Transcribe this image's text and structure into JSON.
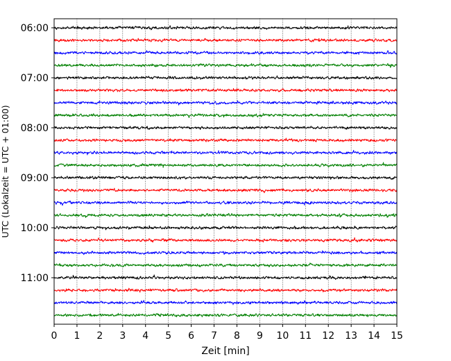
{
  "chart_data": {
    "type": "line",
    "title": "",
    "xlabel": "Zeit  [min]",
    "ylabel": "UTC (Lokalzeit = UTC + 01:00)",
    "xlim": [
      0,
      15
    ],
    "x_ticks": [
      0,
      1,
      2,
      3,
      4,
      5,
      6,
      7,
      8,
      9,
      10,
      11,
      12,
      13,
      14,
      15
    ],
    "x_tick_labels": [
      "0",
      "1",
      "2",
      "3",
      "4",
      "5",
      "6",
      "7",
      "8",
      "9",
      "10",
      "11",
      "12",
      "13",
      "14",
      "15"
    ],
    "y_tick_labels": [
      "06:00",
      "07:00",
      "08:00",
      "09:00",
      "10:00",
      "11:00"
    ],
    "grid": "vertical dotted at each minute",
    "legend": "none",
    "trace_interval_minutes": 15,
    "trace_color_cycle": [
      "#000000",
      "#ff0000",
      "#0000ff",
      "#008000"
    ],
    "series": [
      {
        "start": "06:00",
        "color": "#000000"
      },
      {
        "start": "06:15",
        "color": "#ff0000"
      },
      {
        "start": "06:30",
        "color": "#0000ff"
      },
      {
        "start": "06:45",
        "color": "#008000"
      },
      {
        "start": "07:00",
        "color": "#000000"
      },
      {
        "start": "07:15",
        "color": "#ff0000"
      },
      {
        "start": "07:30",
        "color": "#0000ff"
      },
      {
        "start": "07:45",
        "color": "#008000"
      },
      {
        "start": "08:00",
        "color": "#000000"
      },
      {
        "start": "08:15",
        "color": "#ff0000"
      },
      {
        "start": "08:30",
        "color": "#0000ff"
      },
      {
        "start": "08:45",
        "color": "#008000"
      },
      {
        "start": "09:00",
        "color": "#000000"
      },
      {
        "start": "09:15",
        "color": "#ff0000"
      },
      {
        "start": "09:30",
        "color": "#0000ff"
      },
      {
        "start": "09:45",
        "color": "#008000"
      },
      {
        "start": "10:00",
        "color": "#000000"
      },
      {
        "start": "10:15",
        "color": "#ff0000"
      },
      {
        "start": "10:30",
        "color": "#0000ff"
      },
      {
        "start": "10:45",
        "color": "#008000"
      },
      {
        "start": "11:00",
        "color": "#000000"
      },
      {
        "start": "11:15",
        "color": "#ff0000"
      },
      {
        "start": "11:30",
        "color": "#0000ff"
      },
      {
        "start": "11:45",
        "color": "#008000"
      }
    ]
  }
}
